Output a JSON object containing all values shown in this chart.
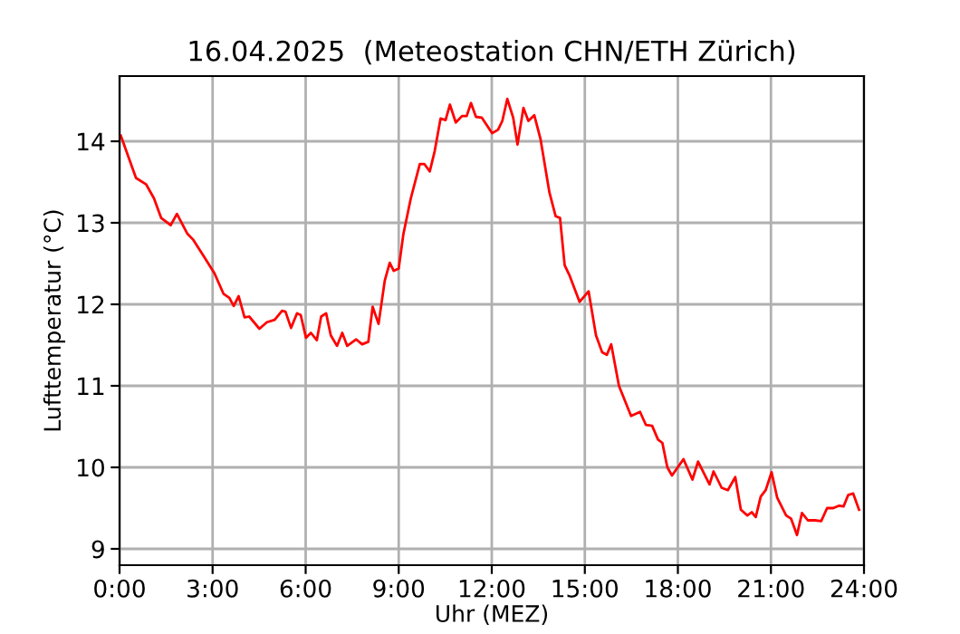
{
  "chart_data": {
    "type": "line",
    "title": "16.04.2025  (Meteostation CHN/ETH Zürich)",
    "xlabel": "Uhr (MEZ)",
    "ylabel": "Lufttemperatur (°C)",
    "xlim": [
      0,
      24
    ],
    "xticks": [
      {
        "value": 0,
        "label": "0:00"
      },
      {
        "value": 3,
        "label": "3:00"
      },
      {
        "value": 6,
        "label": "6:00"
      },
      {
        "value": 9,
        "label": "9:00"
      },
      {
        "value": 12,
        "label": "12:00"
      },
      {
        "value": 15,
        "label": "15:00"
      },
      {
        "value": 18,
        "label": "18:00"
      },
      {
        "value": 21,
        "label": "21:00"
      },
      {
        "value": 24,
        "label": "24:00"
      }
    ],
    "ylim": [
      8.8,
      14.8
    ],
    "yticks": [
      9,
      10,
      11,
      12,
      13,
      14
    ],
    "grid": true,
    "series": [
      {
        "color": "#ff0000",
        "x": [
          0.04,
          0.53,
          0.86,
          1.11,
          1.34,
          1.65,
          1.85,
          2.18,
          2.38,
          2.73,
          3.06,
          3.35,
          3.54,
          3.68,
          3.84,
          4.03,
          4.18,
          4.51,
          4.75,
          5.0,
          5.24,
          5.35,
          5.53,
          5.72,
          5.84,
          6.01,
          6.17,
          6.36,
          6.5,
          6.66,
          6.81,
          7.01,
          7.18,
          7.34,
          7.63,
          7.82,
          8.02,
          8.16,
          8.35,
          8.55,
          8.71,
          8.84,
          9.0,
          9.15,
          9.39,
          9.68,
          9.83,
          10.0,
          10.16,
          10.35,
          10.51,
          10.65,
          10.84,
          11.04,
          11.19,
          11.33,
          11.49,
          11.68,
          12.01,
          12.2,
          12.34,
          12.5,
          12.69,
          12.83,
          13.02,
          13.18,
          13.37,
          13.57,
          13.86,
          14.06,
          14.2,
          14.35,
          14.5,
          14.83,
          15.12,
          15.36,
          15.56,
          15.71,
          15.85,
          16.1,
          16.49,
          16.78,
          16.97,
          17.17,
          17.36,
          17.5,
          17.66,
          17.81,
          18.18,
          18.47,
          18.65,
          19.02,
          19.15,
          19.41,
          19.61,
          19.85,
          20.03,
          20.24,
          20.38,
          20.51,
          20.67,
          20.83,
          21.02,
          21.2,
          21.49,
          21.65,
          21.84,
          22.0,
          22.19,
          22.42,
          22.62,
          22.81,
          23.01,
          23.2,
          23.34,
          23.49,
          23.65,
          23.84
        ],
        "values": [
          14.07,
          13.55,
          13.47,
          13.3,
          13.06,
          12.97,
          13.11,
          12.87,
          12.79,
          12.58,
          12.38,
          12.13,
          12.08,
          11.98,
          12.1,
          11.84,
          11.85,
          11.7,
          11.78,
          11.81,
          11.92,
          11.91,
          11.71,
          11.89,
          11.87,
          11.59,
          11.65,
          11.56,
          11.85,
          11.89,
          11.62,
          11.49,
          11.65,
          11.49,
          11.57,
          11.51,
          11.54,
          11.97,
          11.76,
          12.29,
          12.51,
          12.41,
          12.44,
          12.86,
          13.3,
          13.72,
          13.72,
          13.63,
          13.88,
          14.28,
          14.26,
          14.45,
          14.23,
          14.31,
          14.31,
          14.47,
          14.3,
          14.29,
          14.1,
          14.14,
          14.25,
          14.52,
          14.29,
          13.96,
          14.41,
          14.25,
          14.32,
          14.03,
          13.37,
          13.08,
          13.06,
          12.48,
          12.36,
          12.03,
          12.16,
          11.62,
          11.41,
          11.38,
          11.51,
          11.0,
          10.63,
          10.68,
          10.52,
          10.51,
          10.34,
          10.3,
          10.0,
          9.9,
          10.1,
          9.85,
          10.07,
          9.79,
          9.95,
          9.75,
          9.72,
          9.88,
          9.48,
          9.41,
          9.45,
          9.39,
          9.64,
          9.72,
          9.94,
          9.63,
          9.41,
          9.37,
          9.17,
          9.44,
          9.35,
          9.35,
          9.34,
          9.5,
          9.5,
          9.53,
          9.52,
          9.66,
          9.68,
          9.48
        ]
      }
    ]
  }
}
